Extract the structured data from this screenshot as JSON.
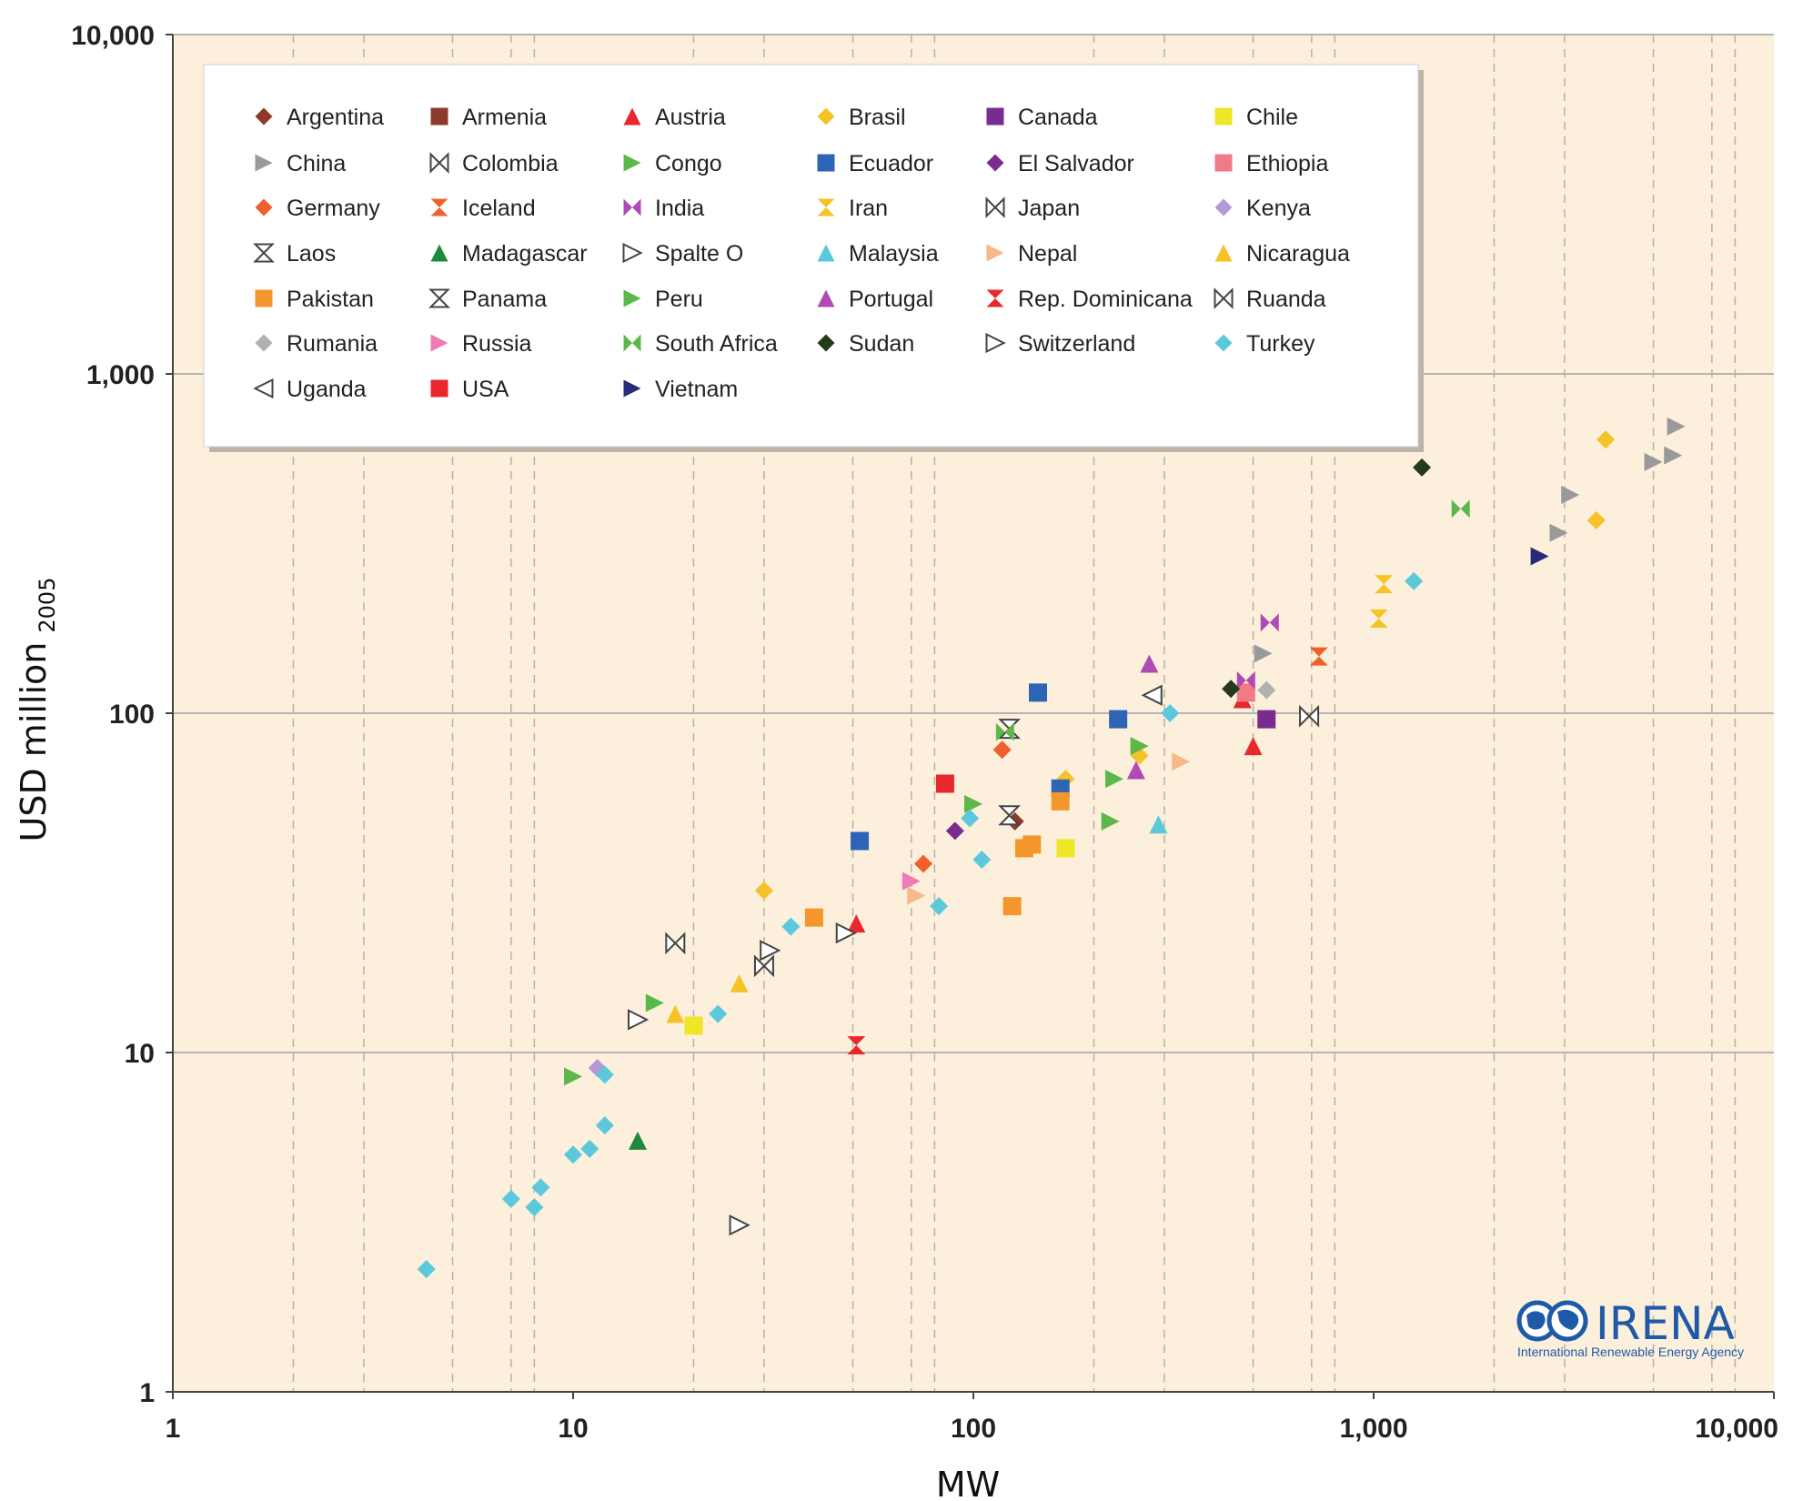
{
  "chart_data": {
    "type": "scatter",
    "xlabel": "MW",
    "ylabel": "USD million",
    "ylabel_sub": "2005",
    "x_scale": "log",
    "y_scale": "log",
    "xlim": [
      1,
      10000
    ],
    "ylim": [
      1,
      10000
    ],
    "x_ticks": [
      {
        "value": 1,
        "label": "1"
      },
      {
        "value": 10,
        "label": "10"
      },
      {
        "value": 100,
        "label": "100"
      },
      {
        "value": 1000,
        "label": "1,000"
      },
      {
        "value": 10000,
        "label": "10,000"
      }
    ],
    "y_ticks": [
      {
        "value": 1,
        "label": "1"
      },
      {
        "value": 10,
        "label": "10"
      },
      {
        "value": 100,
        "label": "100"
      },
      {
        "value": 1000,
        "label": "1,000"
      },
      {
        "value": 10000,
        "label": "10,000"
      }
    ],
    "grid": "dashed vertical at 1-2-5 style log positions, solid horizontal at decades",
    "legend_position": "top-left",
    "background": "#fcefdc",
    "series": [
      {
        "name": "Argentina",
        "marker": "diamond",
        "color": "#8b3a2b",
        "points": [
          [
            127,
            48
          ]
        ]
      },
      {
        "name": "Armenia",
        "marker": "square",
        "color": "#8b3a2b",
        "points": []
      },
      {
        "name": "Austria",
        "marker": "triangle-up",
        "color": "#e8282c",
        "points": [
          [
            51,
            24
          ],
          [
            500,
            80
          ],
          [
            470,
            110
          ]
        ]
      },
      {
        "name": "Brasil",
        "marker": "diamond",
        "color": "#f5c228",
        "points": [
          [
            30,
            30
          ],
          [
            170,
            64
          ],
          [
            260,
            75
          ],
          [
            3800,
            640
          ],
          [
            3600,
            370
          ]
        ]
      },
      {
        "name": "Canada",
        "marker": "square",
        "color": "#7a2b8e",
        "points": [
          [
            540,
            96
          ]
        ]
      },
      {
        "name": "Chile",
        "marker": "square",
        "color": "#f0e628",
        "points": [
          [
            20,
            12
          ],
          [
            170,
            40
          ]
        ]
      },
      {
        "name": "China",
        "marker": "triangle-right",
        "color": "#9a9a9a",
        "points": [
          [
            530,
            150
          ],
          [
            3100,
            440
          ],
          [
            2900,
            340
          ],
          [
            5000,
            550
          ],
          [
            5600,
            575
          ],
          [
            5700,
            700
          ]
        ]
      },
      {
        "name": "Colombia",
        "marker": "bowtie-v",
        "color": "#444444",
        "points": [
          [
            690,
            98
          ]
        ]
      },
      {
        "name": "Congo",
        "marker": "triangle-right",
        "color": "#5cb84a",
        "points": [
          [
            100,
            54
          ],
          [
            260,
            80
          ]
        ]
      },
      {
        "name": "Ecuador",
        "marker": "square",
        "color": "#2e64b5",
        "points": [
          [
            52,
            42
          ],
          [
            145,
            115
          ],
          [
            165,
            60
          ],
          [
            230,
            96
          ]
        ]
      },
      {
        "name": "El Salvador",
        "marker": "diamond",
        "color": "#7a2b8e",
        "points": [
          [
            90,
            45
          ]
        ]
      },
      {
        "name": "Ethiopia",
        "marker": "square",
        "color": "#f07b86",
        "points": [
          [
            480,
            115
          ]
        ]
      },
      {
        "name": "Germany",
        "marker": "diamond",
        "color": "#f0602c",
        "points": [
          [
            75,
            36
          ],
          [
            118,
            78
          ]
        ]
      },
      {
        "name": "Iceland",
        "marker": "hourglass",
        "color": "#f0602c",
        "points": [
          [
            730,
            147
          ]
        ]
      },
      {
        "name": "India",
        "marker": "bowtie-v",
        "color": "#b04ab4",
        "points": [
          [
            550,
            185
          ],
          [
            480,
            125
          ]
        ]
      },
      {
        "name": "Iran",
        "marker": "hourglass",
        "color": "#f5c228",
        "points": [
          [
            1030,
            190
          ],
          [
            1060,
            240
          ]
        ]
      },
      {
        "name": "Japan",
        "marker": "bowtie-v",
        "color": "#444444",
        "points": [
          [
            18,
            21
          ],
          [
            30,
            18
          ]
        ]
      },
      {
        "name": "Kenya",
        "marker": "diamond",
        "color": "#b498d8",
        "points": [
          [
            11.5,
            9
          ]
        ]
      },
      {
        "name": "Laos",
        "marker": "hourglass-open",
        "color": "#444444",
        "points": [
          [
            123,
            50
          ],
          [
            123,
            90
          ]
        ]
      },
      {
        "name": "Madagascar",
        "marker": "triangle-up",
        "color": "#1e8a3c",
        "points": [
          [
            14.5,
            5.5
          ]
        ]
      },
      {
        "name": "Spalte O",
        "marker": "triangle-right-open",
        "color": "#444444",
        "points": [
          [
            14.5,
            12.5
          ],
          [
            26,
            3.1
          ],
          [
            31,
            20
          ],
          [
            48,
            22.5
          ]
        ]
      },
      {
        "name": "Malaysia",
        "marker": "triangle-up",
        "color": "#5bc8dc",
        "points": [
          [
            290,
            47
          ]
        ]
      },
      {
        "name": "Nepal",
        "marker": "triangle-right",
        "color": "#f7b98a",
        "points": [
          [
            72,
            29
          ],
          [
            330,
            72
          ]
        ]
      },
      {
        "name": "Nicaragua",
        "marker": "triangle-up",
        "color": "#f5c228",
        "points": [
          [
            18,
            13
          ],
          [
            26,
            16
          ]
        ]
      },
      {
        "name": "Pakistan",
        "marker": "square",
        "color": "#f5962c",
        "points": [
          [
            40,
            25
          ],
          [
            125,
            27
          ],
          [
            134,
            40
          ],
          [
            140,
            41
          ],
          [
            165,
            55
          ]
        ]
      },
      {
        "name": "Panama",
        "marker": "hourglass-open",
        "color": "#444444",
        "points": []
      },
      {
        "name": "Peru",
        "marker": "triangle-right",
        "color": "#5cb84a",
        "points": [
          [
            10,
            8.5
          ],
          [
            16,
            14
          ],
          [
            220,
            48
          ],
          [
            225,
            64
          ]
        ]
      },
      {
        "name": "Portugal",
        "marker": "triangle-up",
        "color": "#b04ab4",
        "points": [
          [
            255,
            68
          ],
          [
            275,
            140
          ]
        ]
      },
      {
        "name": "Rep. Dominicana",
        "marker": "hourglass",
        "color": "#e8282c",
        "points": [
          [
            51,
            10.5
          ]
        ]
      },
      {
        "name": "Ruanda",
        "marker": "bowtie-v",
        "color": "#444444",
        "points": []
      },
      {
        "name": "Rumania",
        "marker": "diamond",
        "color": "#b0b0b0",
        "points": [
          [
            540,
            117
          ]
        ]
      },
      {
        "name": "Russia",
        "marker": "triangle-right",
        "color": "#f07bb4",
        "points": [
          [
            70,
            32
          ]
        ]
      },
      {
        "name": "South Africa",
        "marker": "bowtie-v",
        "color": "#5cb84a",
        "points": [
          [
            1650,
            400
          ],
          [
            120,
            88
          ]
        ]
      },
      {
        "name": "Sudan",
        "marker": "diamond",
        "color": "#243a1a",
        "points": [
          [
            1320,
            530
          ],
          [
            440,
            118
          ]
        ]
      },
      {
        "name": "Switzerland",
        "marker": "triangle-right-open",
        "color": "#444444",
        "points": []
      },
      {
        "name": "Turkey",
        "marker": "diamond",
        "color": "#5bc8dc",
        "points": [
          [
            4.3,
            2.3
          ],
          [
            7,
            3.7
          ],
          [
            8,
            3.5
          ],
          [
            8.3,
            4.0
          ],
          [
            10,
            5.0
          ],
          [
            11,
            5.2
          ],
          [
            12,
            6.1
          ],
          [
            12,
            8.6
          ],
          [
            23,
            13
          ],
          [
            35,
            23.5
          ],
          [
            82,
            27
          ],
          [
            98,
            49
          ],
          [
            105,
            37
          ],
          [
            310,
            100
          ],
          [
            1260,
            245
          ]
        ]
      },
      {
        "name": "Uganda",
        "marker": "triangle-left-open",
        "color": "#444444",
        "points": [
          [
            280,
            113
          ]
        ]
      },
      {
        "name": "USA",
        "marker": "square",
        "color": "#e8282c",
        "points": [
          [
            85,
            62
          ]
        ]
      },
      {
        "name": "Vietnam",
        "marker": "triangle-right",
        "color": "#2a2a7a",
        "points": [
          [
            2600,
            290
          ]
        ]
      }
    ]
  },
  "logo": {
    "name": "IRENA",
    "tagline": "International Renewable Energy Agency"
  }
}
